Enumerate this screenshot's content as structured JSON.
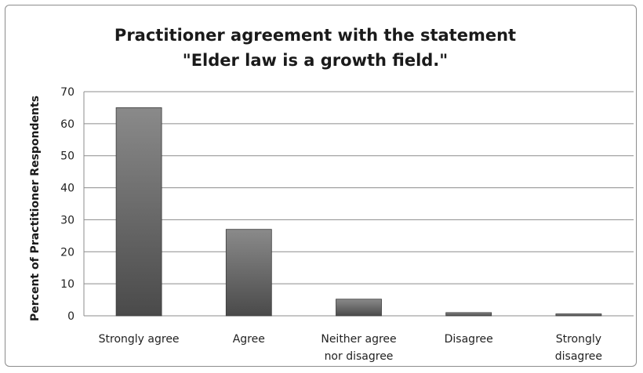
{
  "chart_data": {
    "type": "bar",
    "title": [
      "Practitioner agreement with the statement",
      "\"Elder law is a growth field.\""
    ],
    "xlabel": "",
    "ylabel": "Percent of Practitioner Respondents",
    "categories": [
      [
        "Strongly agree"
      ],
      [
        "Agree"
      ],
      [
        "Neither agree",
        "nor disagree"
      ],
      [
        "Disagree"
      ],
      [
        "Strongly",
        "disagree"
      ]
    ],
    "values": [
      65,
      27,
      5.2,
      1,
      0.6
    ],
    "ylim": [
      0,
      70
    ],
    "yticks": [
      0,
      10,
      20,
      30,
      40,
      50,
      60,
      70
    ],
    "grid": true,
    "legend": "none",
    "colors": {
      "bar_top": "#8a8a8a",
      "bar_bottom": "#4a4a4a",
      "bar_edge": "#3a3a3a",
      "grid": "#8c8c8c"
    }
  }
}
